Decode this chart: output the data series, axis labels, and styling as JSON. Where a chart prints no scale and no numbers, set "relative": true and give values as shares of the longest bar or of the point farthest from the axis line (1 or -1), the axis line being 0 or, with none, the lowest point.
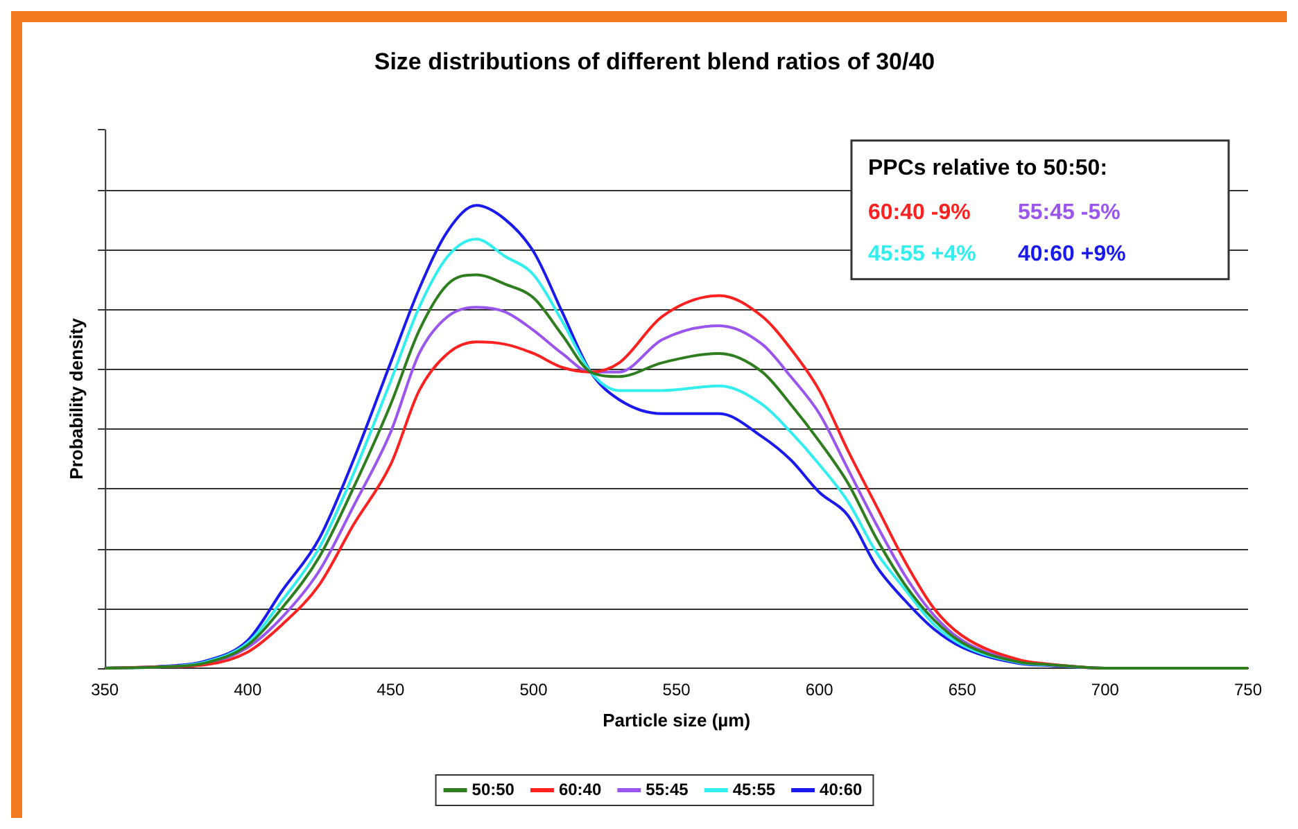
{
  "chart_data": {
    "type": "line",
    "title": "Size distributions of different blend ratios of 30/40",
    "xlabel": "Particle size (µm)",
    "ylabel": "Probability density",
    "relative": true,
    "x": [
      350,
      370,
      385,
      400,
      412,
      425,
      437,
      450,
      460,
      470,
      480,
      490,
      500,
      510,
      520,
      530,
      545,
      565,
      580,
      590,
      600,
      610,
      620,
      630,
      640,
      650,
      670,
      680,
      700,
      750
    ],
    "series": [
      {
        "name": "50:50",
        "color": "#2e7d1e",
        "values": [
          0,
          0.003,
          0.011,
          0.05,
          0.13,
          0.24,
          0.39,
          0.57,
          0.73,
          0.83,
          0.85,
          0.83,
          0.8,
          0.72,
          0.64,
          0.63,
          0.66,
          0.68,
          0.64,
          0.57,
          0.49,
          0.4,
          0.28,
          0.18,
          0.105,
          0.055,
          0.013,
          0.008,
          0,
          0
        ]
      },
      {
        "name": "60:40",
        "color": "#ff2020",
        "values": [
          0,
          0.003,
          0.007,
          0.035,
          0.094,
          0.18,
          0.31,
          0.44,
          0.6,
          0.68,
          0.705,
          0.7,
          0.68,
          0.65,
          0.64,
          0.66,
          0.76,
          0.805,
          0.76,
          0.69,
          0.6,
          0.47,
          0.35,
          0.23,
          0.13,
          0.07,
          0.018,
          0.009,
          0,
          0
        ]
      },
      {
        "name": "55:45",
        "color": "#9955ee",
        "values": [
          0,
          0.003,
          0.009,
          0.045,
          0.11,
          0.21,
          0.35,
          0.51,
          0.68,
          0.76,
          0.78,
          0.77,
          0.73,
          0.68,
          0.64,
          0.64,
          0.71,
          0.74,
          0.7,
          0.63,
          0.55,
          0.43,
          0.31,
          0.2,
          0.115,
          0.06,
          0.015,
          0.008,
          0,
          0
        ]
      },
      {
        "name": "45:55",
        "color": "#33eeee",
        "values": [
          0,
          0.003,
          0.013,
          0.055,
          0.146,
          0.26,
          0.42,
          0.62,
          0.78,
          0.89,
          0.927,
          0.89,
          0.85,
          0.75,
          0.64,
          0.6,
          0.6,
          0.61,
          0.57,
          0.51,
          0.44,
          0.36,
          0.25,
          0.17,
          0.095,
          0.05,
          0.012,
          0.007,
          0,
          0
        ]
      },
      {
        "name": "40:60",
        "color": "#1a1aee",
        "values": [
          0,
          0.004,
          0.015,
          0.06,
          0.167,
          0.28,
          0.45,
          0.66,
          0.82,
          0.945,
          1,
          0.97,
          0.9,
          0.77,
          0.64,
          0.58,
          0.55,
          0.55,
          0.5,
          0.45,
          0.38,
          0.33,
          0.22,
          0.146,
          0.085,
          0.045,
          0.01,
          0.006,
          0,
          0
        ]
      }
    ],
    "xlim": [
      350,
      750
    ],
    "xticks": [
      350,
      400,
      450,
      500,
      550,
      600,
      650,
      700,
      750
    ],
    "grid": "y",
    "legend": "bottom",
    "marker": "none",
    "line_style": "solid",
    "annotations": [
      "PPCs relative to 50:50:",
      "60:40 -9%",
      "55:45 -5%",
      "45:55 +4%",
      "40:60 +9%"
    ]
  }
}
